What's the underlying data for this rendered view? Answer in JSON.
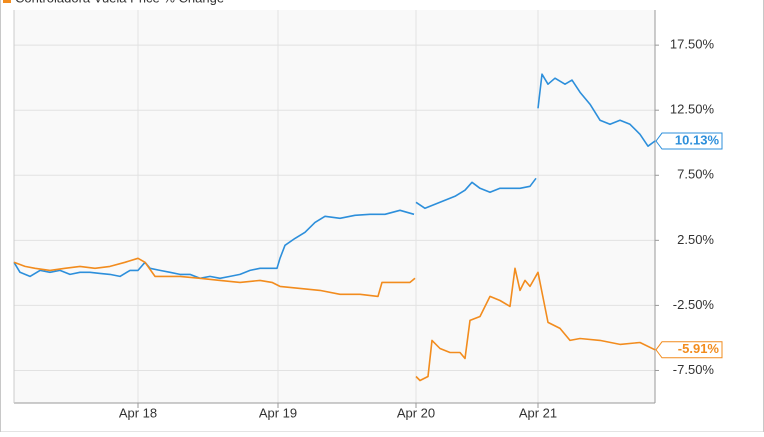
{
  "chart_data": {
    "type": "line",
    "legend": "top-left",
    "grid": true,
    "xlim": [
      0,
      641
    ],
    "xticks": [
      {
        "value": 124,
        "label": "Apr 18"
      },
      {
        "value": 264,
        "label": "Apr 19"
      },
      {
        "value": 402,
        "label": "Apr 20"
      },
      {
        "value": 524,
        "label": "Apr 21"
      }
    ],
    "ylim": [
      -10,
      20.2
    ],
    "yticks": [
      {
        "value": 17.5,
        "label": "17.50%"
      },
      {
        "value": 12.5,
        "label": "12.50%"
      },
      {
        "value": 7.5,
        "label": "7.50%"
      },
      {
        "value": 2.5,
        "label": "2.50%"
      },
      {
        "value": -2.5,
        "label": "-2.50%"
      },
      {
        "value": -7.5,
        "label": "-7.50%"
      }
    ],
    "series": [
      {
        "color": "#2d8fdb",
        "last_label": "10.13%",
        "x": [
          0,
          6,
          16,
          26,
          36,
          46,
          56,
          66,
          76,
          86,
          96,
          106,
          116,
          124,
          131,
          136,
          146,
          156,
          166,
          176,
          186,
          196,
          206,
          216,
          226,
          236,
          246,
          256,
          263,
          266,
          271,
          281,
          291,
          301,
          311,
          326,
          341,
          356,
          371,
          386,
          400,
          null,
          402,
          411,
          421,
          431,
          441,
          451,
          458,
          466,
          476,
          486,
          496,
          506,
          516,
          522,
          null,
          524,
          528,
          534,
          541,
          551,
          558,
          566,
          576,
          586,
          596,
          606,
          616,
          626,
          634,
          641
        ],
        "values": [
          0.81,
          0.04,
          -0.27,
          0.19,
          0.04,
          0.19,
          -0.12,
          0.04,
          0.04,
          -0.04,
          -0.12,
          -0.27,
          0.19,
          0.19,
          0.81,
          0.35,
          0.19,
          0.04,
          -0.12,
          -0.12,
          -0.42,
          -0.27,
          -0.42,
          -0.27,
          -0.12,
          0.19,
          0.35,
          0.35,
          0.35,
          1.12,
          2.12,
          2.65,
          3.12,
          3.88,
          4.35,
          4.19,
          4.42,
          4.5,
          4.5,
          4.81,
          4.5,
          null,
          5.42,
          4.96,
          5.27,
          5.58,
          5.88,
          6.35,
          6.96,
          6.5,
          6.19,
          6.5,
          6.5,
          6.5,
          6.65,
          7.27,
          null,
          12.65,
          15.27,
          14.5,
          14.96,
          14.5,
          14.81,
          13.88,
          12.96,
          11.73,
          11.42,
          11.73,
          11.42,
          10.65,
          9.73,
          10.13
        ]
      },
      {
        "name": "Controladora Vuela Price % Change",
        "color": "#f28c1e",
        "last_label": "-5.91%",
        "x": [
          0,
          11,
          21,
          36,
          51,
          66,
          81,
          96,
          111,
          124,
          131,
          141,
          151,
          166,
          186,
          206,
          226,
          246,
          258,
          266,
          286,
          306,
          326,
          346,
          364,
          368,
          381,
          396,
          401,
          null,
          402,
          406,
          414,
          418,
          426,
          436,
          446,
          451,
          456,
          466,
          476,
          486,
          496,
          501,
          506,
          511,
          516,
          524,
          528,
          534,
          546,
          556,
          566,
          586,
          606,
          626,
          641
        ],
        "values": [
          0.81,
          0.5,
          0.35,
          0.19,
          0.35,
          0.5,
          0.35,
          0.5,
          0.81,
          1.12,
          0.81,
          -0.27,
          -0.27,
          -0.27,
          -0.42,
          -0.58,
          -0.73,
          -0.58,
          -0.73,
          -1.04,
          -1.19,
          -1.35,
          -1.65,
          -1.65,
          -1.81,
          -0.73,
          -0.73,
          -0.73,
          -0.42,
          null,
          -7.96,
          -8.27,
          -7.96,
          -5.19,
          -5.81,
          -6.12,
          -6.12,
          -6.58,
          -3.65,
          -3.35,
          -1.81,
          -2.12,
          -2.58,
          0.35,
          -1.35,
          -0.58,
          -1.04,
          0.04,
          -1.5,
          -3.81,
          -4.27,
          -5.19,
          -5.04,
          -5.19,
          -5.5,
          -5.35,
          -5.91
        ]
      }
    ]
  }
}
